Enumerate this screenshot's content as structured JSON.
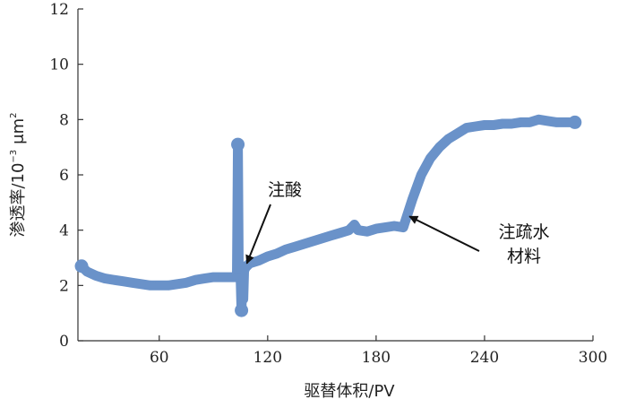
{
  "chart_data": {
    "type": "line",
    "xlabel": "驱替体积/PV",
    "ylabel": "渗透率/10",
    "ylabel_sup": "−3",
    "ylabel_unit": "μm",
    "ylabel_unit_sup": "2",
    "xlim": [
      15,
      300
    ],
    "ylim": [
      0,
      12
    ],
    "xticks": [
      60,
      120,
      180,
      240,
      300
    ],
    "yticks": [
      0,
      2,
      4,
      6,
      8,
      10,
      12
    ],
    "grid": false,
    "series_color": "#6a92c9",
    "series": [
      {
        "x": [
          17,
          20,
          25,
          30,
          35,
          40,
          45,
          50,
          55,
          60,
          65,
          70,
          75,
          80,
          85,
          90,
          95,
          100,
          103,
          103.5,
          104,
          104.5,
          105,
          105.5,
          106,
          106.5,
          107,
          107.5,
          108,
          108.5,
          110,
          115,
          120,
          125,
          130,
          135,
          140,
          145,
          150,
          155,
          160,
          165,
          168,
          170,
          175,
          180,
          185,
          190,
          195,
          197,
          200,
          205,
          210,
          215,
          220,
          225,
          230,
          235,
          240,
          245,
          250,
          255,
          260,
          265,
          270,
          275,
          280,
          285,
          290
        ],
        "y": [
          2.7,
          2.5,
          2.35,
          2.25,
          2.2,
          2.15,
          2.1,
          2.05,
          2.0,
          2.0,
          2.0,
          2.05,
          2.1,
          2.2,
          2.25,
          2.3,
          2.3,
          2.3,
          2.3,
          7.1,
          2.3,
          2.3,
          2.3,
          1.1,
          2.3,
          1.5,
          2.6,
          2.6,
          2.7,
          2.7,
          2.8,
          2.9,
          3.05,
          3.15,
          3.3,
          3.4,
          3.5,
          3.6,
          3.7,
          3.8,
          3.9,
          4.0,
          4.2,
          4.0,
          3.95,
          4.05,
          4.1,
          4.15,
          4.1,
          4.5,
          5.1,
          6.0,
          6.6,
          7.0,
          7.3,
          7.5,
          7.7,
          7.75,
          7.8,
          7.8,
          7.85,
          7.85,
          7.9,
          7.9,
          8.0,
          7.95,
          7.9,
          7.9,
          7.9
        ]
      }
    ],
    "markers": [
      {
        "x": 103.5,
        "y": 7.1
      },
      {
        "x": 105.5,
        "y": 1.1
      },
      {
        "x": 17,
        "y": 2.7
      },
      {
        "x": 290,
        "y": 7.9
      }
    ],
    "annotations": [
      {
        "lines": [
          "注酸"
        ],
        "arrow_to": [
          107,
          2.7
        ]
      },
      {
        "lines": [
          "注疏水",
          "材料"
        ],
        "arrow_to": [
          197,
          4.4
        ]
      }
    ]
  }
}
